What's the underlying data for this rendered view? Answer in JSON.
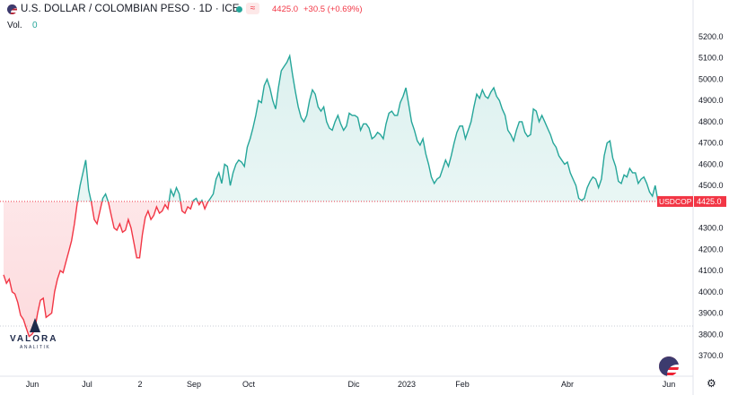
{
  "header": {
    "title": "U.S. DOLLAR / COLOMBIAN PESO · 1D · ICE",
    "wave_icon": "≈",
    "price": "4425.0",
    "change": "+30.5 (+0.69%)",
    "vol_label": "Vol.",
    "vol_value": "0"
  },
  "price_label": {
    "symbol": "USDCOP",
    "value": "4425.0"
  },
  "logo": {
    "word": "VALORA",
    "sub": "ANALITIK"
  },
  "icons": {
    "flag": "us-flag-icon",
    "status": "market-status-icon",
    "wave": "wave-icon",
    "currency_button": "us-flag-icon",
    "settings": "gear-icon"
  },
  "colors": {
    "up": "#26a69a",
    "down": "#f23645",
    "fill_up": "#e3f4f1",
    "fill_down": "#fde4e4"
  },
  "chart_data": {
    "type": "area",
    "baseline": 4425.0,
    "ylim": [
      3660,
      5230
    ],
    "y_ticks": [
      "5200.0",
      "5100.0",
      "5000.0",
      "4900.0",
      "4800.0",
      "4700.0",
      "4600.0",
      "4500.0",
      "4300.0",
      "4200.0",
      "4100.0",
      "4000.0",
      "3900.0",
      "3800.0",
      "3700.0"
    ],
    "x_ticks": [
      "Jun",
      "Jul",
      "2",
      "Sep",
      "Oct",
      "Dic",
      "2023",
      "Feb",
      "Abr",
      "Jun"
    ],
    "series": [
      {
        "values": [
          4080,
          4040,
          4060,
          4000,
          3990,
          3950,
          3890,
          3870,
          3830,
          3790,
          3800,
          3820,
          3900,
          3960,
          3970,
          3880,
          3890,
          3900,
          4000,
          4060,
          4100,
          4090,
          4140,
          4190,
          4240,
          4320,
          4420,
          4500,
          4560,
          4620,
          4480,
          4420,
          4340,
          4320,
          4380,
          4440,
          4460,
          4420,
          4360,
          4300,
          4290,
          4320,
          4280,
          4290,
          4340,
          4300,
          4230,
          4160,
          4160,
          4270,
          4350,
          4380,
          4340,
          4360,
          4400,
          4370,
          4380,
          4410,
          4390,
          4480,
          4450,
          4490,
          4460,
          4380,
          4370,
          4400,
          4390,
          4430,
          4440,
          4410,
          4430,
          4390,
          4420,
          4440,
          4460,
          4530,
          4560,
          4510,
          4600,
          4590,
          4500,
          4560,
          4600,
          4620,
          4610,
          4590,
          4680,
          4720,
          4770,
          4830,
          4900,
          4890,
          4970,
          5000,
          4960,
          4900,
          4860,
          4960,
          5040,
          5060,
          5080,
          5110,
          5020,
          4940,
          4870,
          4820,
          4800,
          4830,
          4900,
          4950,
          4930,
          4870,
          4850,
          4870,
          4800,
          4770,
          4760,
          4800,
          4830,
          4790,
          4760,
          4780,
          4840,
          4830,
          4830,
          4820,
          4760,
          4790,
          4790,
          4770,
          4720,
          4730,
          4750,
          4740,
          4720,
          4790,
          4840,
          4850,
          4830,
          4830,
          4890,
          4920,
          4960,
          4880,
          4800,
          4760,
          4710,
          4690,
          4720,
          4650,
          4600,
          4540,
          4510,
          4530,
          4540,
          4580,
          4620,
          4590,
          4640,
          4700,
          4750,
          4780,
          4780,
          4720,
          4760,
          4800,
          4870,
          4930,
          4910,
          4950,
          4920,
          4910,
          4940,
          4960,
          4920,
          4900,
          4860,
          4830,
          4760,
          4740,
          4710,
          4760,
          4800,
          4800,
          4750,
          4730,
          4740,
          4860,
          4850,
          4800,
          4830,
          4800,
          4770,
          4740,
          4700,
          4680,
          4640,
          4620,
          4600,
          4610,
          4560,
          4530,
          4500,
          4440,
          4430,
          4440,
          4490,
          4520,
          4540,
          4530,
          4490,
          4530,
          4640,
          4700,
          4710,
          4630,
          4590,
          4520,
          4510,
          4550,
          4540,
          4580,
          4560,
          4560,
          4510,
          4530,
          4540,
          4510,
          4470,
          4450,
          4500,
          4425
        ]
      }
    ]
  }
}
